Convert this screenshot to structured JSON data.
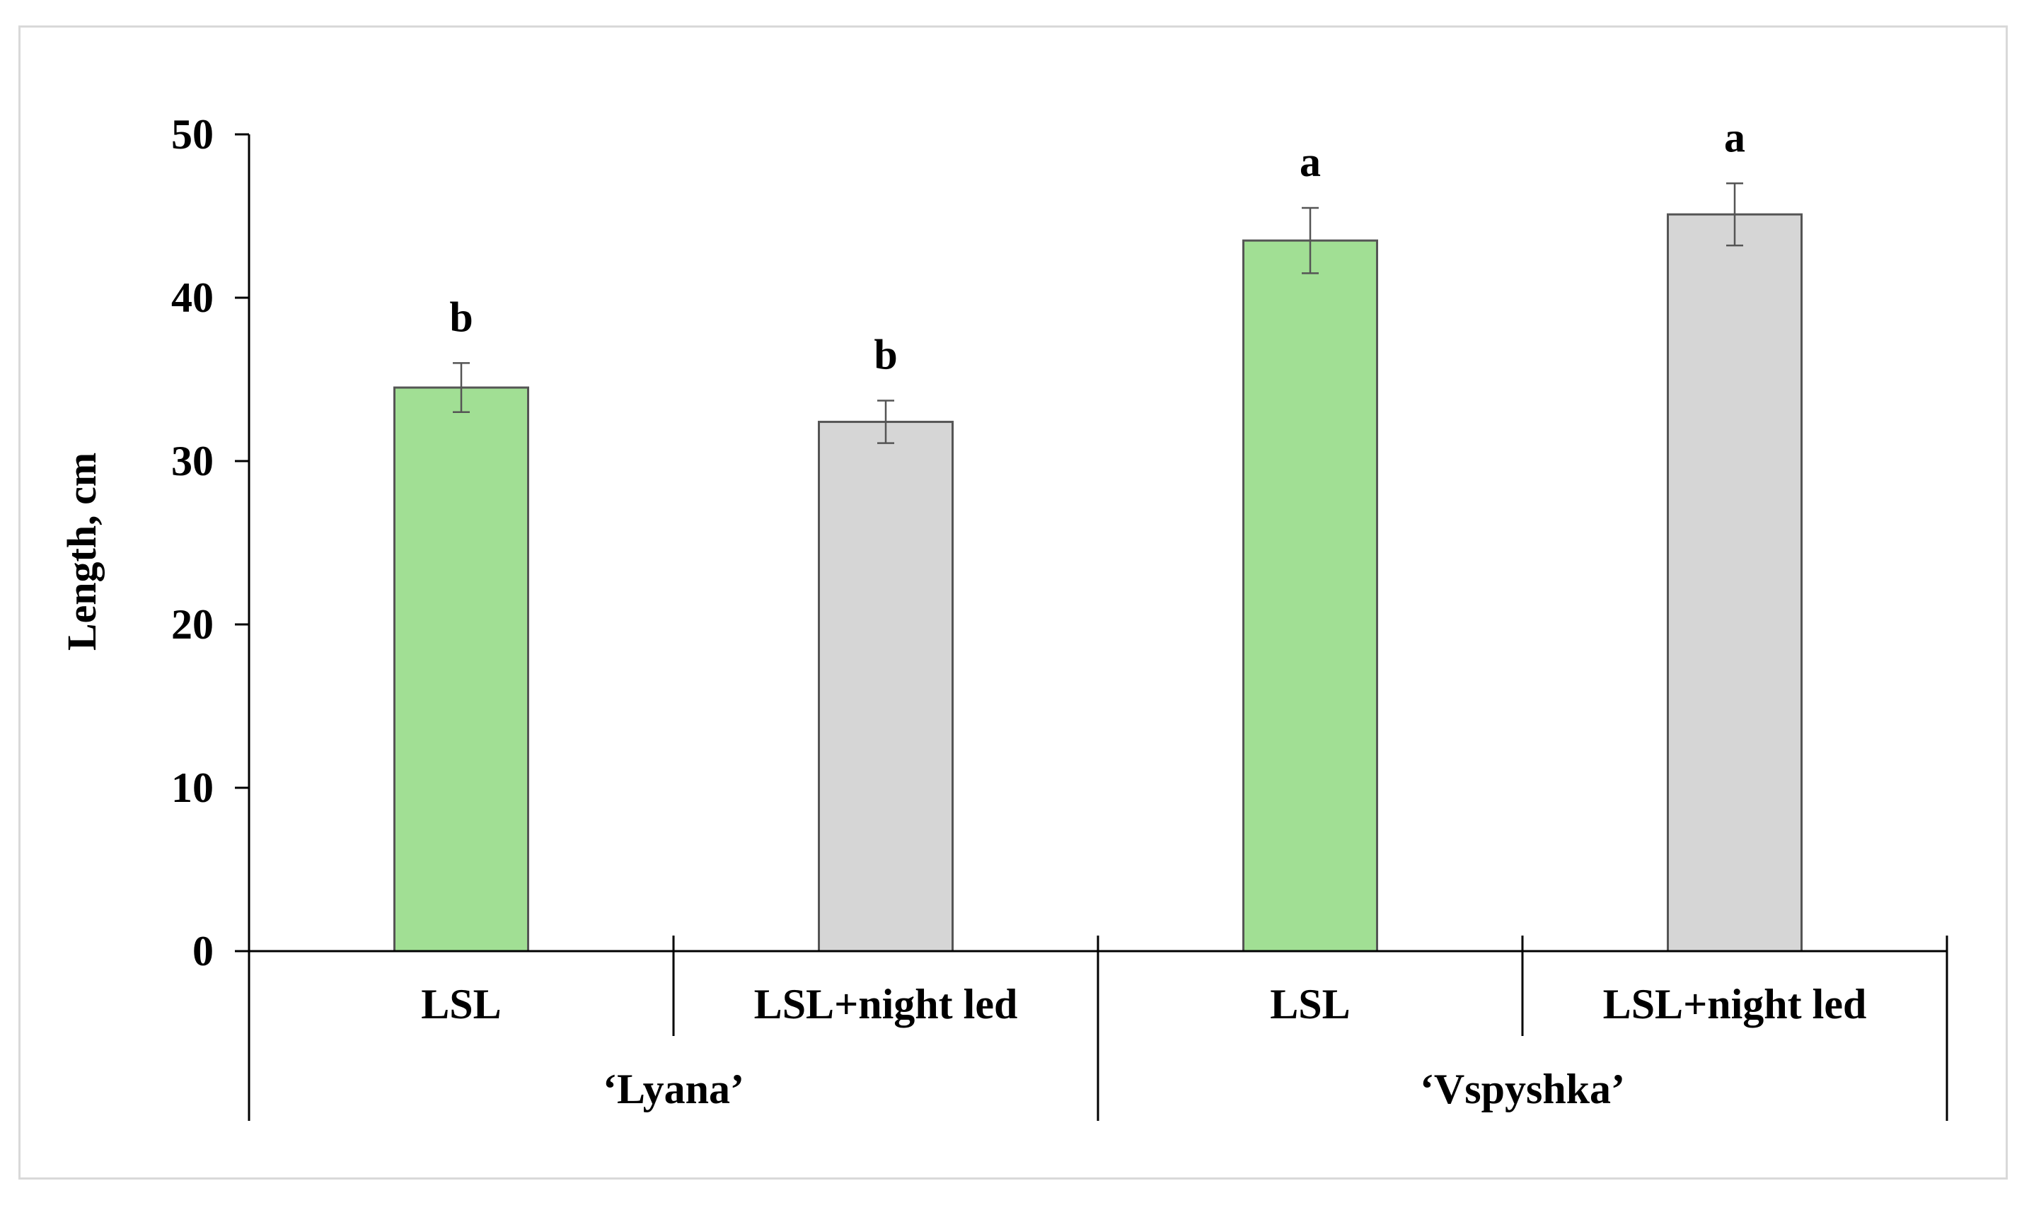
{
  "chart_data": {
    "type": "bar",
    "title": "",
    "xlabel": "",
    "ylabel": "Length, cm",
    "ylim": [
      0,
      50
    ],
    "yticks": [
      0,
      10,
      20,
      30,
      40,
      50
    ],
    "grid": false,
    "legend": "none",
    "groups": [
      {
        "label": "‘Lyana’",
        "bars": [
          {
            "category": "LSL",
            "value": 34.5,
            "error": 1.5,
            "significance": "b",
            "color": "#a1df94"
          },
          {
            "category": "LSL+night led",
            "value": 32.4,
            "error": 1.3,
            "significance": "b",
            "color": "#d6d6d6"
          }
        ]
      },
      {
        "label": "‘Vspyshka’",
        "bars": [
          {
            "category": "LSL",
            "value": 43.5,
            "error": 2.0,
            "significance": "a",
            "color": "#a1df94"
          },
          {
            "category": "LSL+night led",
            "value": 45.1,
            "error": 1.9,
            "significance": "a",
            "color": "#d6d6d6"
          }
        ]
      }
    ]
  }
}
